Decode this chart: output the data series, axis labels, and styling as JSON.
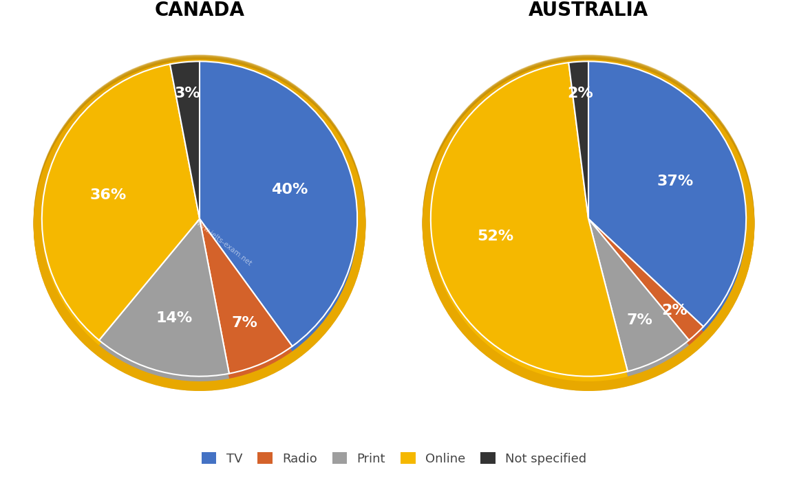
{
  "canada": {
    "title": "CANADA",
    "values": [
      40,
      7,
      14,
      36,
      3
    ],
    "labels": [
      "40%",
      "7%",
      "14%",
      "36%",
      "3%"
    ]
  },
  "australia": {
    "title": "AUSTRALIA",
    "values": [
      37,
      2,
      7,
      52,
      2
    ],
    "labels": [
      "37%",
      "2%",
      "7%",
      "52%",
      "2%"
    ]
  },
  "categories": [
    "TV",
    "Radio",
    "Print",
    "Online",
    "Not specified"
  ],
  "colors": [
    "#4472C4",
    "#D4622A",
    "#9E9E9E",
    "#F5B800",
    "#333333"
  ],
  "ring_color": "#E8A800",
  "ring_color_dark": "#C89000",
  "background_color": "#FFFFFF",
  "title_fontsize": 20,
  "label_fontsize": 16,
  "legend_fontsize": 13,
  "watermark": "www.ielts-exam.net"
}
